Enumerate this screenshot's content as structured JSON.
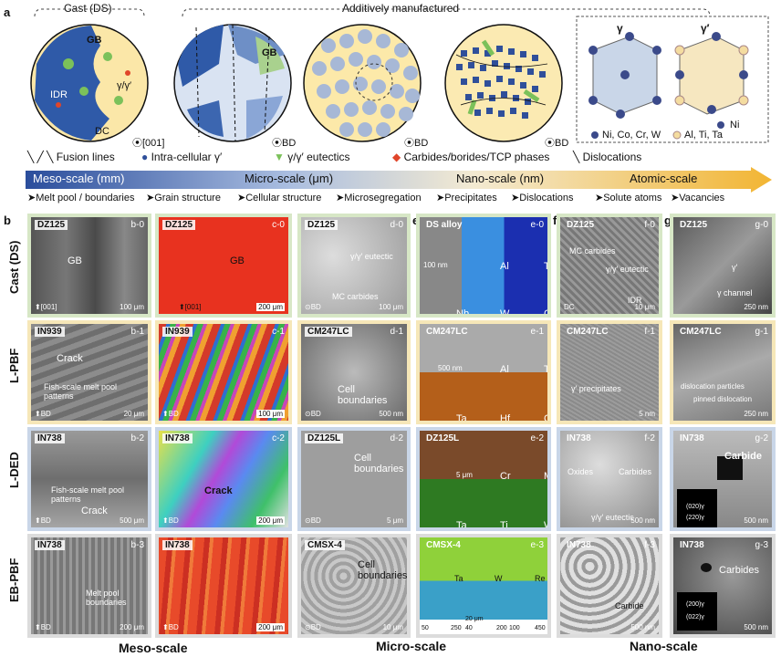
{
  "panel_a": {
    "label": "a",
    "cast_ds": "Cast (DS)",
    "additive": "Additively manufactured",
    "gb": "GB",
    "gb2": "GB",
    "idr": "IDR",
    "dc": "DC",
    "gamma_pair": "γ/γ′",
    "dir_001": "⦿[001]",
    "bd1": "⦿BD",
    "bd2": "⦿BD",
    "bd3": "⦿BD",
    "gamma": "γ",
    "gamma_prime": "γ′",
    "ni": "Ni",
    "legend_ni": "Ni, Co, Cr, W",
    "legend_al": "Al, Ti, Ta"
  },
  "legend": {
    "fusion": "Fusion lines",
    "intra": "Intra-cellular γ′",
    "eutectics": "γ/γ′ eutectics",
    "carbides": "Carbides/borides/TCP phases",
    "dislocations": "Dislocations"
  },
  "scales": {
    "meso": "Meso-scale (mm)",
    "micro": "Micro-scale (μm)",
    "nano": "Nano-scale (nm)",
    "atomic": "Atomic-scale"
  },
  "features": [
    "➤Melt pool / boundaries",
    "➤Grain structure",
    "➤Cellular structure",
    "➤Microsegregation",
    "➤Precipitates",
    "➤Dislocations",
    "➤Solute atoms",
    "➤Vacancies"
  ],
  "columns": [
    "b",
    "c",
    "d",
    "e",
    "f",
    "g"
  ],
  "rows": [
    "Cast (DS)",
    "L-PBF",
    "L-DED",
    "EB-PBF"
  ],
  "tiles": {
    "b0": {
      "alloy": "DZ125",
      "id": "b-0",
      "note": "GB",
      "scale": "100 μm",
      "dir": "⬆[001]"
    },
    "b1": {
      "alloy": "IN939",
      "id": "b-1",
      "note": "Crack",
      "note2": "Fish-scale melt pool patterns",
      "scale": "20 μm",
      "dir": "⬆BD"
    },
    "b2": {
      "alloy": "IN738",
      "id": "b-2",
      "note": "Fish-scale melt pool patterns",
      "note2": "Crack",
      "scale": "500 μm",
      "dir": "⬆BD"
    },
    "b3": {
      "alloy": "IN738",
      "id": "b-3",
      "note": "Melt pool boundaries",
      "scale": "200 μm",
      "dir": "⬆BD"
    },
    "c0": {
      "alloy": "DZ125",
      "id": "c-0",
      "note": "GB",
      "scale": "200 μm",
      "dir": "⬆[001]"
    },
    "c1": {
      "alloy": "IN939",
      "id": "c-1",
      "scale": "100 μm",
      "dir": "⬆BD"
    },
    "c2": {
      "alloy": "IN738",
      "id": "c-2",
      "note": "Crack",
      "scale": "200 μm",
      "dir": "⬆BD"
    },
    "c3": {
      "alloy": "IN738",
      "id": "c-3",
      "scale": "200 μm",
      "dir": "⬆BD"
    },
    "d0": {
      "alloy": "DZ125",
      "id": "d-0",
      "note": "γ/γ′ eutectic",
      "note2": "MC carbides",
      "scale": "100 μm",
      "dir": "⊙BD"
    },
    "d1": {
      "alloy": "CM247LC",
      "id": "d-1",
      "note": "Cell boundaries",
      "scale": "500 nm",
      "dir": "⊙BD"
    },
    "d2": {
      "alloy": "DZ125L",
      "id": "d-2",
      "note": "Cell boundaries",
      "scale": "5 μm",
      "dir": "⊙BD"
    },
    "d3": {
      "alloy": "CMSX-4",
      "id": "d-3",
      "note": "Cell boundaries",
      "scale": "10 μm",
      "dir": "⊙BD"
    },
    "e0": {
      "alloy": "DS alloy",
      "id": "e-0",
      "el": [
        "Al",
        "Ti",
        "Nb",
        "W",
        "C"
      ],
      "scale": "100 nm"
    },
    "e1": {
      "alloy": "CM247LC",
      "id": "e-1",
      "el": [
        "Al",
        "Ti",
        "Ta",
        "Hf",
        "C"
      ],
      "scale": "500 nm"
    },
    "e2": {
      "alloy": "DZ125L",
      "id": "e-2",
      "el": [
        "Cr",
        "Mo",
        "Ta",
        "Ti",
        "W"
      ],
      "scale": "5 μm"
    },
    "e3": {
      "alloy": "CMSX-4",
      "id": "e-3",
      "el": [
        "Ta",
        "W",
        "Re"
      ],
      "scale": "20 μm",
      "ticks1": [
        "50",
        "250"
      ],
      "ticks2": [
        "40",
        "200"
      ],
      "ticks3": [
        "100",
        "450"
      ]
    },
    "f0": {
      "alloy": "DZ125",
      "id": "f-0",
      "note": "MC carbides",
      "note2": "γ/γ′ eutectic",
      "note3": "IDR",
      "scale": "10 μm",
      "dir": "DC"
    },
    "f1": {
      "alloy": "CM247LC",
      "id": "f-1",
      "note": "γ′ precipitates",
      "scale": "5 nm"
    },
    "f2": {
      "alloy": "IN738",
      "id": "f-2",
      "note": "Oxides",
      "note2": "Carbides",
      "note3": "γ/γ′ eutectic",
      "scale": "500 nm"
    },
    "f3": {
      "alloy": "IN738",
      "id": "f-3",
      "note": "Carbide",
      "scale": "500 nm"
    },
    "g0": {
      "alloy": "DZ125",
      "id": "g-0",
      "note": "γ′",
      "note2": "γ channel",
      "scale": "250 nm"
    },
    "g1": {
      "alloy": "CM247LC",
      "id": "g-1",
      "note": "dislocation particles",
      "note2": "pinned dislocation",
      "scale": "250 nm"
    },
    "g2": {
      "alloy": "IN738",
      "id": "g-2",
      "note": "Carbide",
      "scale": "500 nm",
      "d1": "(020)γ",
      "d2": "(220)γ"
    },
    "g3": {
      "alloy": "IN738",
      "id": "g-3",
      "note": "Carbides",
      "scale": "500 nm",
      "d1": "(200)γ",
      "d2": "(022)γ"
    }
  },
  "bottom": {
    "meso": "Meso-scale",
    "micro": "Micro-scale",
    "nano": "Nano-scale"
  }
}
